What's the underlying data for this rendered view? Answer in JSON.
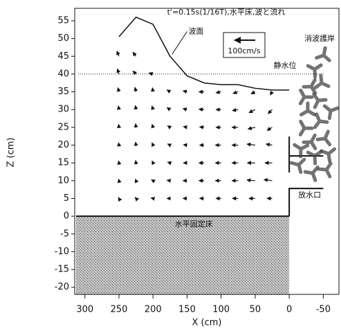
{
  "chart_data": {
    "type": "vector_field",
    "title": "t'=0.15s(1/16T),水平床,波と流れ",
    "x_label": "X (cm)",
    "y_label": "Z (cm)",
    "xlim": [
      315,
      -73
    ],
    "ylim": [
      -22,
      58.5
    ],
    "xticks": [
      300,
      250,
      200,
      150,
      100,
      50,
      0,
      -50
    ],
    "yticks": [
      55,
      50,
      45,
      40,
      35,
      30,
      25,
      20,
      15,
      10,
      5,
      0,
      -5,
      -10,
      -15,
      -20
    ],
    "surface": {
      "name": "波面",
      "x": [
        250,
        225,
        200,
        175,
        150,
        125,
        100,
        75,
        50,
        25,
        0
      ],
      "z": [
        50.5,
        56,
        54,
        45,
        39.5,
        37.5,
        37,
        37,
        36,
        35.5,
        35.5
      ]
    },
    "still_water": {
      "name": "静水位",
      "z": 40
    },
    "floor": {
      "name": "水平固定床",
      "z": 0
    },
    "outlet": {
      "name": "放水口"
    },
    "breakwater": {
      "name": "消波護岸"
    },
    "reference_vector": {
      "value": 100,
      "label": "100cm/s"
    },
    "vectors": {
      "x": [
        250,
        250,
        250,
        250,
        250,
        250,
        250,
        250,
        250,
        225,
        225,
        225,
        225,
        225,
        225,
        225,
        225,
        225,
        200,
        200,
        200,
        200,
        200,
        200,
        200,
        200,
        175,
        175,
        175,
        175,
        175,
        175,
        175,
        150,
        150,
        150,
        150,
        150,
        150,
        150,
        125,
        125,
        125,
        125,
        125,
        125,
        125,
        100,
        100,
        100,
        100,
        100,
        100,
        100,
        75,
        75,
        75,
        75,
        75,
        75,
        75,
        50,
        50,
        50,
        50,
        50,
        50,
        50,
        25,
        25,
        25,
        25,
        25,
        25,
        25
      ],
      "z": [
        45,
        40,
        35,
        30,
        25,
        20,
        15,
        10,
        5,
        45,
        40,
        35,
        30,
        25,
        20,
        15,
        10,
        5,
        40,
        35,
        30,
        25,
        20,
        15,
        10,
        5,
        35,
        30,
        25,
        20,
        15,
        10,
        5,
        35,
        30,
        25,
        20,
        15,
        10,
        5,
        35,
        30,
        25,
        20,
        15,
        10,
        5,
        35,
        30,
        25,
        20,
        15,
        10,
        5,
        35,
        30,
        25,
        20,
        15,
        10,
        5,
        35,
        30,
        25,
        20,
        15,
        10,
        5,
        35,
        30,
        25,
        20,
        15,
        10,
        5
      ],
      "u": [
        10,
        8,
        5,
        3,
        2,
        2,
        2,
        2,
        3,
        15,
        15,
        5,
        3,
        2,
        2,
        2,
        3,
        5,
        20,
        3,
        5,
        5,
        5,
        5,
        8,
        10,
        15,
        15,
        12,
        12,
        12,
        15,
        15,
        20,
        20,
        18,
        18,
        18,
        20,
        20,
        25,
        25,
        22,
        22,
        25,
        25,
        22,
        25,
        25,
        25,
        28,
        28,
        28,
        25,
        25,
        28,
        30,
        30,
        30,
        30,
        28,
        20,
        30,
        35,
        40,
        38,
        40,
        30,
        10,
        20,
        25,
        30,
        35,
        40,
        25
      ],
      "w": [
        25,
        25,
        20,
        18,
        15,
        12,
        10,
        8,
        5,
        20,
        15,
        22,
        20,
        18,
        15,
        12,
        8,
        5,
        5,
        20,
        18,
        15,
        12,
        10,
        5,
        2,
        10,
        10,
        8,
        6,
        4,
        2,
        0,
        5,
        5,
        4,
        2,
        0,
        0,
        0,
        0,
        2,
        2,
        0,
        0,
        0,
        0,
        -5,
        0,
        0,
        0,
        0,
        0,
        0,
        -8,
        -5,
        0,
        0,
        0,
        0,
        0,
        -10,
        -15,
        -8,
        5,
        0,
        3,
        0,
        -15,
        -20,
        -15,
        5,
        0,
        5,
        0
      ]
    }
  }
}
